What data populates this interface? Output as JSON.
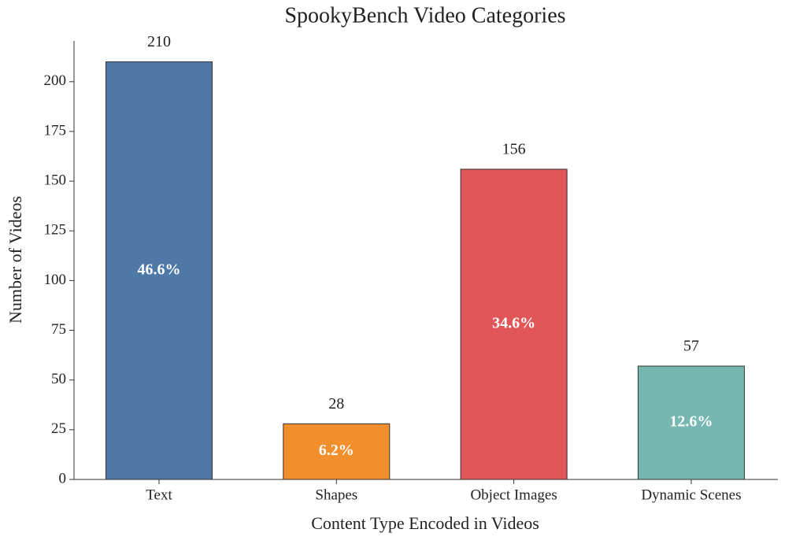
{
  "chart_data": {
    "type": "bar",
    "title": "SpookyBench Video Categories",
    "x_label": "Content Type Encoded in Videos",
    "y_label": "Number of Videos",
    "categories": [
      "Text",
      "Shapes",
      "Object Images",
      "Dynamic Scenes"
    ],
    "values": [
      210,
      28,
      156,
      57
    ],
    "percent_labels": [
      "46.6%",
      "6.2%",
      "34.6%",
      "12.6%"
    ],
    "colors": [
      "#4e79a7",
      "#f28e2b",
      "#e15759",
      "#76b7b2"
    ],
    "ylim": [
      0,
      220.5
    ],
    "yticks": [
      0,
      25,
      50,
      75,
      100,
      125,
      150,
      175,
      200
    ],
    "grid": false
  }
}
